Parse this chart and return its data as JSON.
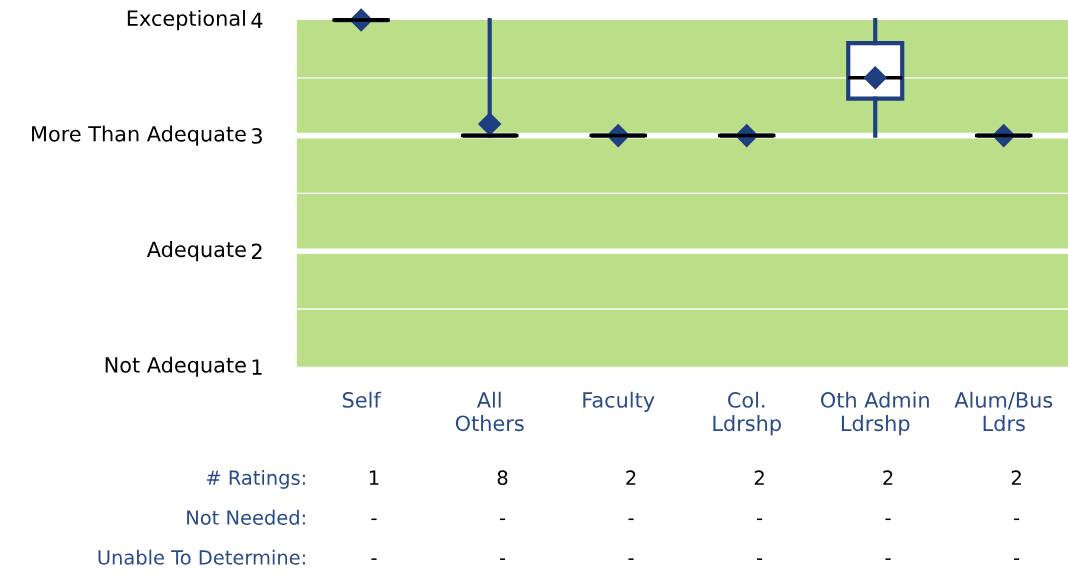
{
  "chart_data": {
    "type": "box",
    "categories": [
      "Self",
      "All\nOthers",
      "Faculty",
      "Col.\nLdrshp",
      "Oth Admin\nLdrshp",
      "Alum/Bus\nLdrs"
    ],
    "boxes": [
      {
        "low": 4,
        "q1": 4,
        "median": 4,
        "q3": 4,
        "high": 4,
        "mean": 4
      },
      {
        "low": 3,
        "q1": 3,
        "median": 3,
        "q3": 3,
        "high": 4,
        "mean": 3.1
      },
      {
        "low": 3,
        "q1": 3,
        "median": 3,
        "q3": 3,
        "high": 3,
        "mean": 3
      },
      {
        "low": 3,
        "q1": 3,
        "median": 3,
        "q3": 3,
        "high": 3,
        "mean": 3
      },
      {
        "low": 3,
        "q1": 3.32,
        "median": 3.5,
        "q3": 3.8,
        "high": 4,
        "mean": 3.5
      },
      {
        "low": 3,
        "q1": 3,
        "median": 3,
        "q3": 3,
        "high": 3,
        "mean": 3
      }
    ],
    "color": "#1f3f80",
    "ylim": [
      1,
      4
    ],
    "yticks": [
      1,
      {
        "value": 1.5,
        "label": null
      },
      2,
      {
        "value": 2.5,
        "label": null
      },
      3,
      {
        "value": 3.5,
        "label": null
      },
      4
    ],
    "grid": "y",
    "marker": "diamond",
    "annotations": [
      "Not Adequate",
      "Adequate",
      "More Than Adequate",
      "Exceptional",
      "# Ratings:",
      "1",
      "8",
      "2",
      "2",
      "2",
      "2",
      "Not Needed:",
      "-",
      "-",
      "-",
      "-",
      "-",
      "-",
      "Unable To Determine:",
      "-",
      "-",
      "-",
      "-",
      "-",
      "-"
    ]
  }
}
